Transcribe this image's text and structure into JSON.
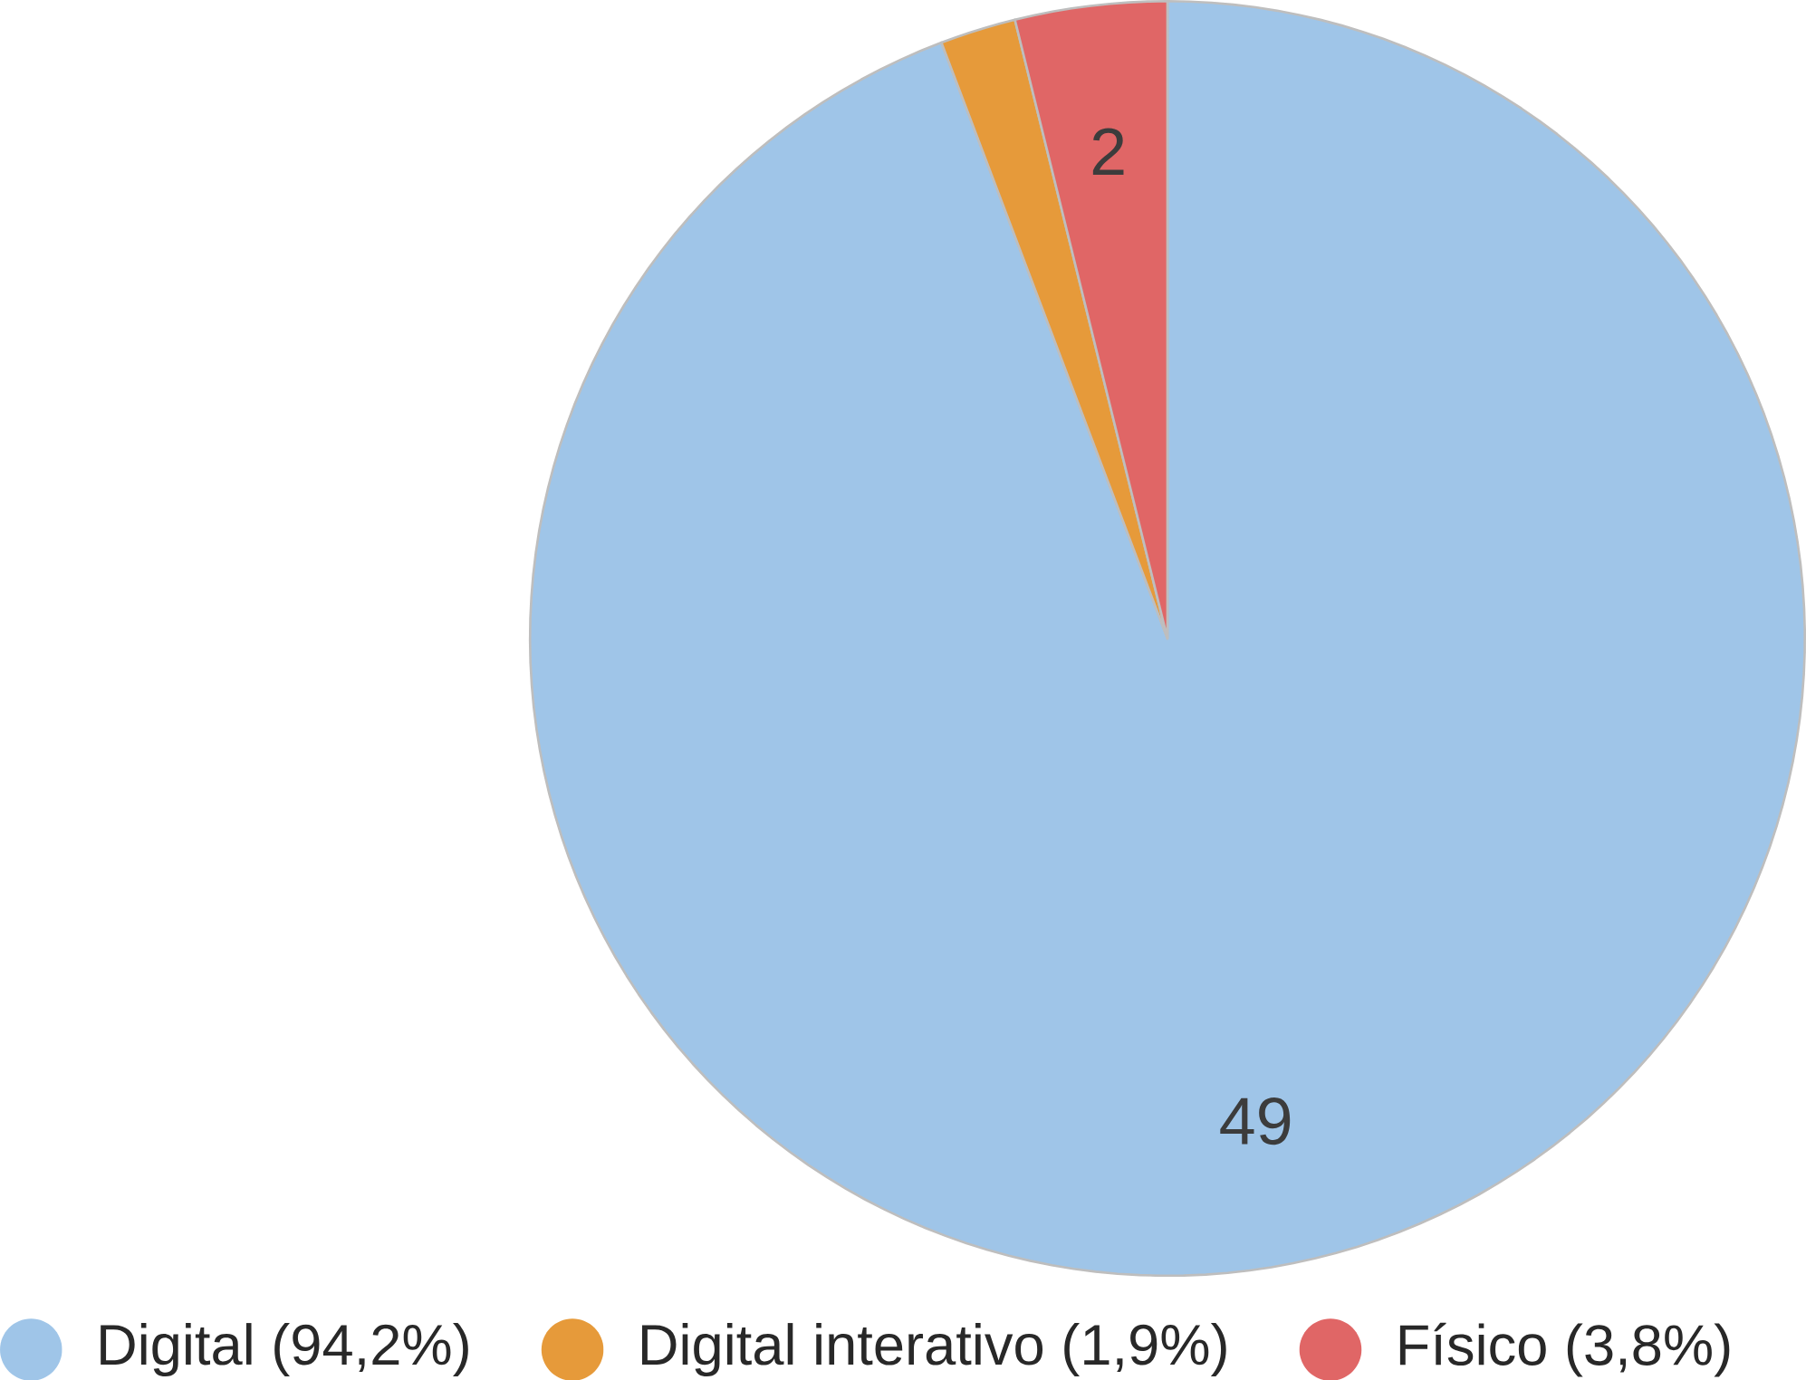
{
  "chart_data": {
    "type": "pie",
    "categories": [
      "Digital (94,2%)",
      "Digital interativo (1,9%)",
      "Físico (3,8%)"
    ],
    "values": [
      49,
      1,
      2
    ],
    "colors": [
      "#9fc5e8",
      "#e69a3a",
      "#e06666"
    ],
    "value_labels": [
      "49",
      null,
      "2"
    ],
    "legend": "bottom"
  }
}
